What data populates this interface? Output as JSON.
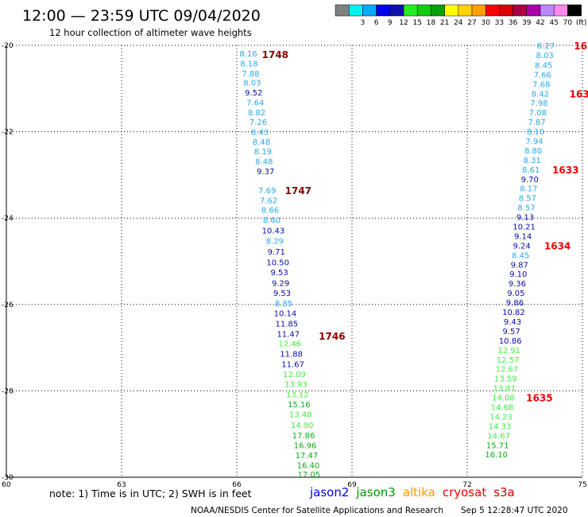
{
  "header": {
    "title": "12:00 — 23:59 UTC 09/04/2020",
    "subtitle": "12 hour collection of altimeter wave heights"
  },
  "color_scale": {
    "bins": [
      {
        "color": "#808080",
        "label": ""
      },
      {
        "color": "#00f0f0",
        "label": "3"
      },
      {
        "color": "#00aaff",
        "label": "6"
      },
      {
        "color": "#0000ee",
        "label": "9"
      },
      {
        "color": "#1010aa",
        "label": "12"
      },
      {
        "color": "#22ee22",
        "label": "15"
      },
      {
        "color": "#11cc11",
        "label": "18"
      },
      {
        "color": "#0aa00a",
        "label": "21"
      },
      {
        "color": "#ffff00",
        "label": "24"
      },
      {
        "color": "#ffd200",
        "label": "27"
      },
      {
        "color": "#ffa000",
        "label": "30"
      },
      {
        "color": "#ff0000",
        "label": "33"
      },
      {
        "color": "#dd0000",
        "label": "36"
      },
      {
        "color": "#aa0044",
        "label": "39"
      },
      {
        "color": "#aa00aa",
        "label": "42"
      },
      {
        "color": "#bb88ff",
        "label": "45"
      },
      {
        "color": "#ff88ee",
        "label": "70"
      },
      {
        "color": "#000000",
        "label": "(ft)"
      }
    ]
  },
  "footer": {
    "note": "note: 1) Time is in UTC; 2) SWH is in feet",
    "satellites": [
      {
        "name": "jason2",
        "color": "#0000ee"
      },
      {
        "name": "jason3",
        "color": "#009900"
      },
      {
        "name": "altika",
        "color": "#ff9900"
      },
      {
        "name": "cryosat",
        "color": "#ff0000"
      },
      {
        "name": "s3a",
        "color": "#cc0000"
      }
    ],
    "credit": "NOAA/NESDIS Center for Satellite Applications and Research",
    "timestamp": "Sep  5 12:28:47 UTC 2020"
  },
  "colors": {
    "sky": "#2aa8f0",
    "navy": "#0a0aaa",
    "light_green": "#44ee44",
    "green": "#11aa11",
    "time_dark": "#880000",
    "time_red": "#ee0000"
  },
  "chart_data": {
    "type": "scatter",
    "xlim": [
      60,
      75
    ],
    "ylim": [
      -30,
      -20
    ],
    "x_ticks": [
      60,
      63,
      66,
      69,
      72,
      75
    ],
    "y_ticks": [
      -20,
      -22,
      -24,
      -26,
      -28,
      -30
    ],
    "grid": true,
    "tracks": [
      {
        "points": [
          {
            "x": 66.3,
            "y": -20.18,
            "v": "8.16",
            "c": "sky"
          },
          {
            "x": 66.32,
            "y": -20.41,
            "v": "8.18",
            "c": "sky"
          },
          {
            "x": 66.36,
            "y": -20.64,
            "v": "7.88",
            "c": "sky"
          },
          {
            "x": 66.4,
            "y": -20.86,
            "v": "8.03",
            "c": "sky"
          },
          {
            "x": 66.44,
            "y": -21.09,
            "v": "9.52",
            "c": "navy"
          },
          {
            "x": 66.48,
            "y": -21.32,
            "v": "7.64",
            "c": "sky"
          },
          {
            "x": 66.52,
            "y": -21.55,
            "v": "8.82",
            "c": "sky"
          },
          {
            "x": 66.56,
            "y": -21.77,
            "v": "7.26",
            "c": "sky"
          },
          {
            "x": 66.6,
            "y": -22.0,
            "v": "8.43",
            "c": "sky"
          },
          {
            "x": 66.64,
            "y": -22.23,
            "v": "8.48",
            "c": "sky"
          },
          {
            "x": 66.68,
            "y": -22.45,
            "v": "8.19",
            "c": "sky"
          },
          {
            "x": 66.71,
            "y": -22.68,
            "v": "8.48",
            "c": "sky"
          },
          {
            "x": 66.75,
            "y": -22.91,
            "v": "9.37",
            "c": "navy"
          },
          {
            "x": 66.79,
            "y": -23.35,
            "v": "7.69",
            "c": "sky"
          },
          {
            "x": 66.83,
            "y": -23.58,
            "v": "7.62",
            "c": "sky"
          },
          {
            "x": 66.87,
            "y": -23.8,
            "v": "8.66",
            "c": "sky"
          },
          {
            "x": 66.91,
            "y": -24.03,
            "v": "8.60",
            "c": "sky"
          },
          {
            "x": 66.95,
            "y": -24.28,
            "v": "10.43",
            "c": "navy"
          },
          {
            "x": 66.99,
            "y": -24.52,
            "v": "8.29",
            "c": "sky"
          },
          {
            "x": 67.03,
            "y": -24.77,
            "v": "9.71",
            "c": "navy"
          },
          {
            "x": 67.07,
            "y": -25.02,
            "v": "10.50",
            "c": "navy"
          },
          {
            "x": 67.11,
            "y": -25.25,
            "v": "9.53",
            "c": "navy"
          },
          {
            "x": 67.14,
            "y": -25.5,
            "v": "9.29",
            "c": "navy"
          },
          {
            "x": 67.18,
            "y": -25.73,
            "v": "9.53",
            "c": "navy"
          },
          {
            "x": 67.22,
            "y": -25.97,
            "v": "8.85",
            "c": "sky"
          },
          {
            "x": 67.26,
            "y": -26.2,
            "v": "10.14",
            "c": "navy"
          },
          {
            "x": 67.3,
            "y": -26.44,
            "v": "11.85",
            "c": "navy"
          },
          {
            "x": 67.34,
            "y": -26.68,
            "v": "11.47",
            "c": "navy"
          },
          {
            "x": 67.38,
            "y": -26.9,
            "v": "12.46",
            "c": "light_green"
          },
          {
            "x": 67.42,
            "y": -27.14,
            "v": "11.88",
            "c": "navy"
          },
          {
            "x": 67.46,
            "y": -27.38,
            "v": "11.67",
            "c": "navy"
          },
          {
            "x": 67.5,
            "y": -27.61,
            "v": "12.09",
            "c": "light_green"
          },
          {
            "x": 67.54,
            "y": -27.84,
            "v": "13.93",
            "c": "light_green"
          },
          {
            "x": 67.58,
            "y": -28.08,
            "v": "13.12",
            "c": "light_green"
          },
          {
            "x": 67.62,
            "y": -28.31,
            "v": "15.16",
            "c": "green"
          },
          {
            "x": 67.66,
            "y": -28.54,
            "v": "13.48",
            "c": "light_green"
          },
          {
            "x": 67.7,
            "y": -28.78,
            "v": "14.90",
            "c": "light_green"
          },
          {
            "x": 67.74,
            "y": -29.02,
            "v": "17.86",
            "c": "green"
          },
          {
            "x": 67.78,
            "y": -29.25,
            "v": "16.96",
            "c": "green"
          },
          {
            "x": 67.82,
            "y": -29.48,
            "v": "17.47",
            "c": "green"
          },
          {
            "x": 67.86,
            "y": -29.71,
            "v": "16.40",
            "c": "green"
          },
          {
            "x": 67.88,
            "y": -29.93,
            "v": "17.05",
            "c": "green"
          }
        ],
        "times": [
          {
            "label": "1748",
            "x": 67.0,
            "y": -20.2,
            "c": "time_dark"
          },
          {
            "label": "1747",
            "x": 67.6,
            "y": -23.35,
            "c": "time_dark"
          },
          {
            "label": "1746",
            "x": 68.48,
            "y": -26.72,
            "c": "time_dark"
          }
        ]
      },
      {
        "points": [
          {
            "x": 74.05,
            "y": -20.0,
            "v": "8.27",
            "c": "sky"
          },
          {
            "x": 74.02,
            "y": -20.22,
            "v": "8.03",
            "c": "sky"
          },
          {
            "x": 73.99,
            "y": -20.45,
            "v": "8.45",
            "c": "sky"
          },
          {
            "x": 73.96,
            "y": -20.67,
            "v": "7.66",
            "c": "sky"
          },
          {
            "x": 73.93,
            "y": -20.89,
            "v": "7.68",
            "c": "sky"
          },
          {
            "x": 73.9,
            "y": -21.11,
            "v": "8.42",
            "c": "sky"
          },
          {
            "x": 73.87,
            "y": -21.33,
            "v": "7.98",
            "c": "sky"
          },
          {
            "x": 73.84,
            "y": -21.55,
            "v": "7.08",
            "c": "sky"
          },
          {
            "x": 73.81,
            "y": -21.77,
            "v": "7.87",
            "c": "sky"
          },
          {
            "x": 73.78,
            "y": -21.99,
            "v": "8.10",
            "c": "sky"
          },
          {
            "x": 73.75,
            "y": -22.21,
            "v": "7.94",
            "c": "sky"
          },
          {
            "x": 73.72,
            "y": -22.43,
            "v": "8.80",
            "c": "sky"
          },
          {
            "x": 73.69,
            "y": -22.65,
            "v": "8.31",
            "c": "sky"
          },
          {
            "x": 73.66,
            "y": -22.87,
            "v": "8.61",
            "c": "sky"
          },
          {
            "x": 73.63,
            "y": -23.09,
            "v": "9.70",
            "c": "navy"
          },
          {
            "x": 73.6,
            "y": -23.31,
            "v": "8.17",
            "c": "sky"
          },
          {
            "x": 73.57,
            "y": -23.53,
            "v": "8.57",
            "c": "sky"
          },
          {
            "x": 73.54,
            "y": -23.75,
            "v": "8.57",
            "c": "sky"
          },
          {
            "x": 73.51,
            "y": -23.97,
            "v": "9.13",
            "c": "navy"
          },
          {
            "x": 73.48,
            "y": -24.19,
            "v": "10.21",
            "c": "navy"
          },
          {
            "x": 73.45,
            "y": -24.41,
            "v": "9.14",
            "c": "navy"
          },
          {
            "x": 73.42,
            "y": -24.63,
            "v": "9.24",
            "c": "navy"
          },
          {
            "x": 73.39,
            "y": -24.85,
            "v": "8.45",
            "c": "sky"
          },
          {
            "x": 73.36,
            "y": -25.07,
            "v": "9.87",
            "c": "navy"
          },
          {
            "x": 73.33,
            "y": -25.29,
            "v": "9.10",
            "c": "navy"
          },
          {
            "x": 73.3,
            "y": -25.51,
            "v": "9.36",
            "c": "navy"
          },
          {
            "x": 73.27,
            "y": -25.73,
            "v": "9.05",
            "c": "navy"
          },
          {
            "x": 73.24,
            "y": -25.95,
            "v": "9.86",
            "c": "navy"
          },
          {
            "x": 73.21,
            "y": -26.17,
            "v": "10.82",
            "c": "navy"
          },
          {
            "x": 73.18,
            "y": -26.39,
            "v": "9.43",
            "c": "navy"
          },
          {
            "x": 73.15,
            "y": -26.61,
            "v": "9.57",
            "c": "navy"
          },
          {
            "x": 73.12,
            "y": -26.83,
            "v": "10.86",
            "c": "navy"
          },
          {
            "x": 73.09,
            "y": -27.05,
            "v": "12.91",
            "c": "light_green"
          },
          {
            "x": 73.06,
            "y": -27.27,
            "v": "12.57",
            "c": "light_green"
          },
          {
            "x": 73.03,
            "y": -27.49,
            "v": "12.67",
            "c": "light_green"
          },
          {
            "x": 73.0,
            "y": -27.71,
            "v": "13.59",
            "c": "light_green"
          },
          {
            "x": 72.97,
            "y": -27.93,
            "v": "13.81",
            "c": "light_green"
          },
          {
            "x": 72.94,
            "y": -28.15,
            "v": "14.08",
            "c": "light_green"
          },
          {
            "x": 72.91,
            "y": -28.37,
            "v": "14.68",
            "c": "light_green"
          },
          {
            "x": 72.88,
            "y": -28.59,
            "v": "14.23",
            "c": "light_green"
          },
          {
            "x": 72.85,
            "y": -28.81,
            "v": "14.33",
            "c": "light_green"
          },
          {
            "x": 72.82,
            "y": -29.03,
            "v": "14.67",
            "c": "light_green"
          },
          {
            "x": 72.79,
            "y": -29.25,
            "v": "15.71",
            "c": "green"
          },
          {
            "x": 72.76,
            "y": -29.47,
            "v": "16.10",
            "c": "green"
          }
        ],
        "times": [
          {
            "label": "16",
            "x": 74.95,
            "y": -20.0,
            "c": "time_red"
          },
          {
            "label": "163",
            "x": 74.92,
            "y": -21.11,
            "c": "time_red"
          },
          {
            "label": "1633",
            "x": 74.56,
            "y": -22.87,
            "c": "time_red"
          },
          {
            "label": "1634",
            "x": 74.35,
            "y": -24.63,
            "c": "time_red"
          },
          {
            "label": "1635",
            "x": 73.88,
            "y": -28.15,
            "c": "time_red"
          }
        ]
      }
    ]
  }
}
